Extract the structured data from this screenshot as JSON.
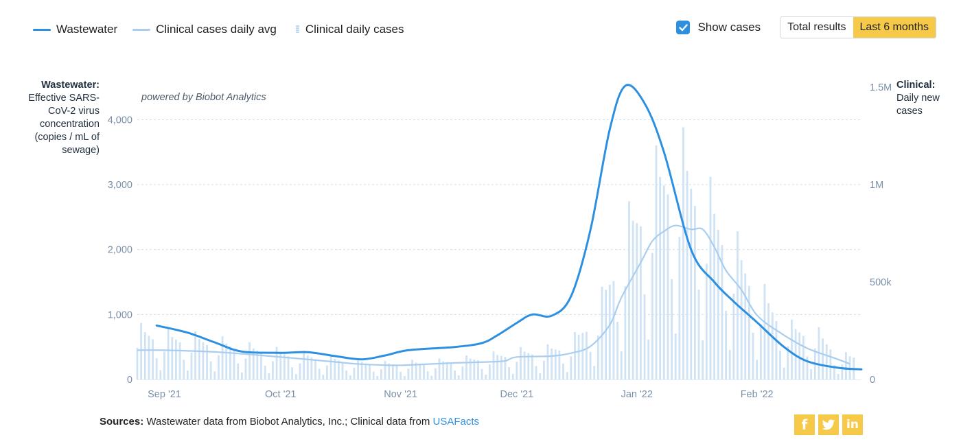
{
  "legend": {
    "wastewater": "Wastewater",
    "clinical_avg": "Clinical cases daily avg",
    "clinical_daily": "Clinical daily cases"
  },
  "controls": {
    "show_cases_label": "Show cases",
    "show_cases_checked": true,
    "total_results_label": "Total results",
    "last_6_months_label": "Last 6 months",
    "active": "Last 6 months"
  },
  "axis_titles": {
    "left_bold": "Wastewater:",
    "left_rest": "Effective SARS-CoV-2 virus concentration (copies / mL of sewage)",
    "right_bold": "Clinical:",
    "right_rest": "Daily new cases"
  },
  "powered_by": "powered by Biobot Analytics",
  "footer": {
    "sources_bold": "Sources:",
    "sources_text": "Wastewater data from Biobot Analytics, Inc.; Clinical data from",
    "sources_link": "USAFacts"
  },
  "social": {
    "facebook": "f",
    "twitter": "t",
    "linkedin": "in"
  },
  "colors": {
    "wastewater": "#2d8fe0",
    "clinical_avg": "#a9cdef",
    "clinical_bars": "#cfe3f5",
    "grid": "#cfe0ef",
    "tick_text": "#7a8fa8",
    "accent": "#f7c948"
  },
  "chart_data": {
    "type": "line",
    "x_range": [
      "2021-08-25",
      "2022-02-28"
    ],
    "x_ticks": [
      {
        "date": "2021-09-01",
        "label": "Sep '21"
      },
      {
        "date": "2021-10-01",
        "label": "Oct '21"
      },
      {
        "date": "2021-11-01",
        "label": "Nov '21"
      },
      {
        "date": "2021-12-01",
        "label": "Dec '21"
      },
      {
        "date": "2022-01-01",
        "label": "Jan '22"
      },
      {
        "date": "2022-02-01",
        "label": "Feb '22"
      }
    ],
    "y_left": {
      "min": 0,
      "max": 4500,
      "ticks": [
        0,
        1000,
        2000,
        3000,
        4000
      ],
      "tick_labels": [
        "0",
        "1,000",
        "2,000",
        "3,000",
        "4,000"
      ]
    },
    "y_right": {
      "min": 0,
      "max": 1500000,
      "ticks": [
        0,
        500000,
        1000000,
        1500000
      ],
      "tick_labels": [
        "0",
        "500k",
        "1M",
        "1.5M"
      ]
    },
    "grid": true,
    "series": [
      {
        "name": "Wastewater",
        "axis": "left",
        "points": [
          [
            "2021-08-30",
            830
          ],
          [
            "2021-09-07",
            720
          ],
          [
            "2021-09-14",
            570
          ],
          [
            "2021-09-21",
            430
          ],
          [
            "2021-10-01",
            410
          ],
          [
            "2021-10-08",
            420
          ],
          [
            "2021-10-15",
            360
          ],
          [
            "2021-10-22",
            310
          ],
          [
            "2021-10-28",
            370
          ],
          [
            "2021-11-03",
            450
          ],
          [
            "2021-11-15",
            500
          ],
          [
            "2021-11-22",
            560
          ],
          [
            "2021-11-26",
            680
          ],
          [
            "2021-12-01",
            870
          ],
          [
            "2021-12-05",
            1000
          ],
          [
            "2021-12-10",
            980
          ],
          [
            "2021-12-15",
            1280
          ],
          [
            "2021-12-20",
            2300
          ],
          [
            "2021-12-25",
            3850
          ],
          [
            "2021-12-29",
            4520
          ],
          [
            "2022-01-03",
            4250
          ],
          [
            "2022-01-08",
            3500
          ],
          [
            "2022-01-15",
            2000
          ],
          [
            "2022-01-21",
            1500
          ],
          [
            "2022-01-26",
            1200
          ],
          [
            "2022-02-01",
            880
          ],
          [
            "2022-02-08",
            500
          ],
          [
            "2022-02-14",
            280
          ],
          [
            "2022-02-22",
            180
          ],
          [
            "2022-02-28",
            155
          ]
        ]
      },
      {
        "name": "Clinical cases daily avg",
        "axis": "right",
        "points": [
          [
            "2021-08-25",
            150000
          ],
          [
            "2021-09-01",
            150000
          ],
          [
            "2021-09-15",
            140000
          ],
          [
            "2021-10-01",
            115000
          ],
          [
            "2021-10-15",
            90000
          ],
          [
            "2021-10-22",
            78000
          ],
          [
            "2021-11-01",
            73000
          ],
          [
            "2021-11-15",
            85000
          ],
          [
            "2021-11-24",
            90000
          ],
          [
            "2021-11-28",
            95000
          ],
          [
            "2021-12-01",
            115000
          ],
          [
            "2021-12-10",
            120000
          ],
          [
            "2021-12-15",
            135000
          ],
          [
            "2021-12-20",
            170000
          ],
          [
            "2021-12-25",
            280000
          ],
          [
            "2021-12-28",
            420000
          ],
          [
            "2022-01-02",
            600000
          ],
          [
            "2022-01-05",
            710000
          ],
          [
            "2022-01-08",
            760000
          ],
          [
            "2022-01-11",
            790000
          ],
          [
            "2022-01-15",
            770000
          ],
          [
            "2022-01-18",
            770000
          ],
          [
            "2022-01-21",
            680000
          ],
          [
            "2022-01-24",
            560000
          ],
          [
            "2022-01-28",
            460000
          ],
          [
            "2022-02-01",
            330000
          ],
          [
            "2022-02-07",
            240000
          ],
          [
            "2022-02-14",
            160000
          ],
          [
            "2022-02-21",
            110000
          ],
          [
            "2022-02-25",
            80000
          ]
        ]
      },
      {
        "name": "Clinical daily cases",
        "axis": "right",
        "type": "bar",
        "weekly_peaks": [
          [
            "2021-08-25",
            295000
          ],
          [
            "2021-09-01",
            260000
          ],
          [
            "2021-09-08",
            250000
          ],
          [
            "2021-09-15",
            225000
          ],
          [
            "2021-09-22",
            195000
          ],
          [
            "2021-09-29",
            170000
          ],
          [
            "2021-10-06",
            150000
          ],
          [
            "2021-10-13",
            130000
          ],
          [
            "2021-10-20",
            110000
          ],
          [
            "2021-10-27",
            95000
          ],
          [
            "2021-11-03",
            100000
          ],
          [
            "2021-11-10",
            105000
          ],
          [
            "2021-11-17",
            120000
          ],
          [
            "2021-11-24",
            140000
          ],
          [
            "2021-12-01",
            165000
          ],
          [
            "2021-12-08",
            175000
          ],
          [
            "2021-12-15",
            215000
          ],
          [
            "2021-12-22",
            410000
          ],
          [
            "2021-12-29",
            870000
          ],
          [
            "2022-01-05",
            1180000
          ],
          [
            "2022-01-12",
            1330000
          ],
          [
            "2022-01-19",
            1080000
          ],
          [
            "2022-01-26",
            800000
          ],
          [
            "2022-02-02",
            520000
          ],
          [
            "2022-02-09",
            310000
          ],
          [
            "2022-02-16",
            290000
          ],
          [
            "2022-02-23",
            140000
          ]
        ],
        "weekly_low_fraction": 0.18
      }
    ]
  }
}
